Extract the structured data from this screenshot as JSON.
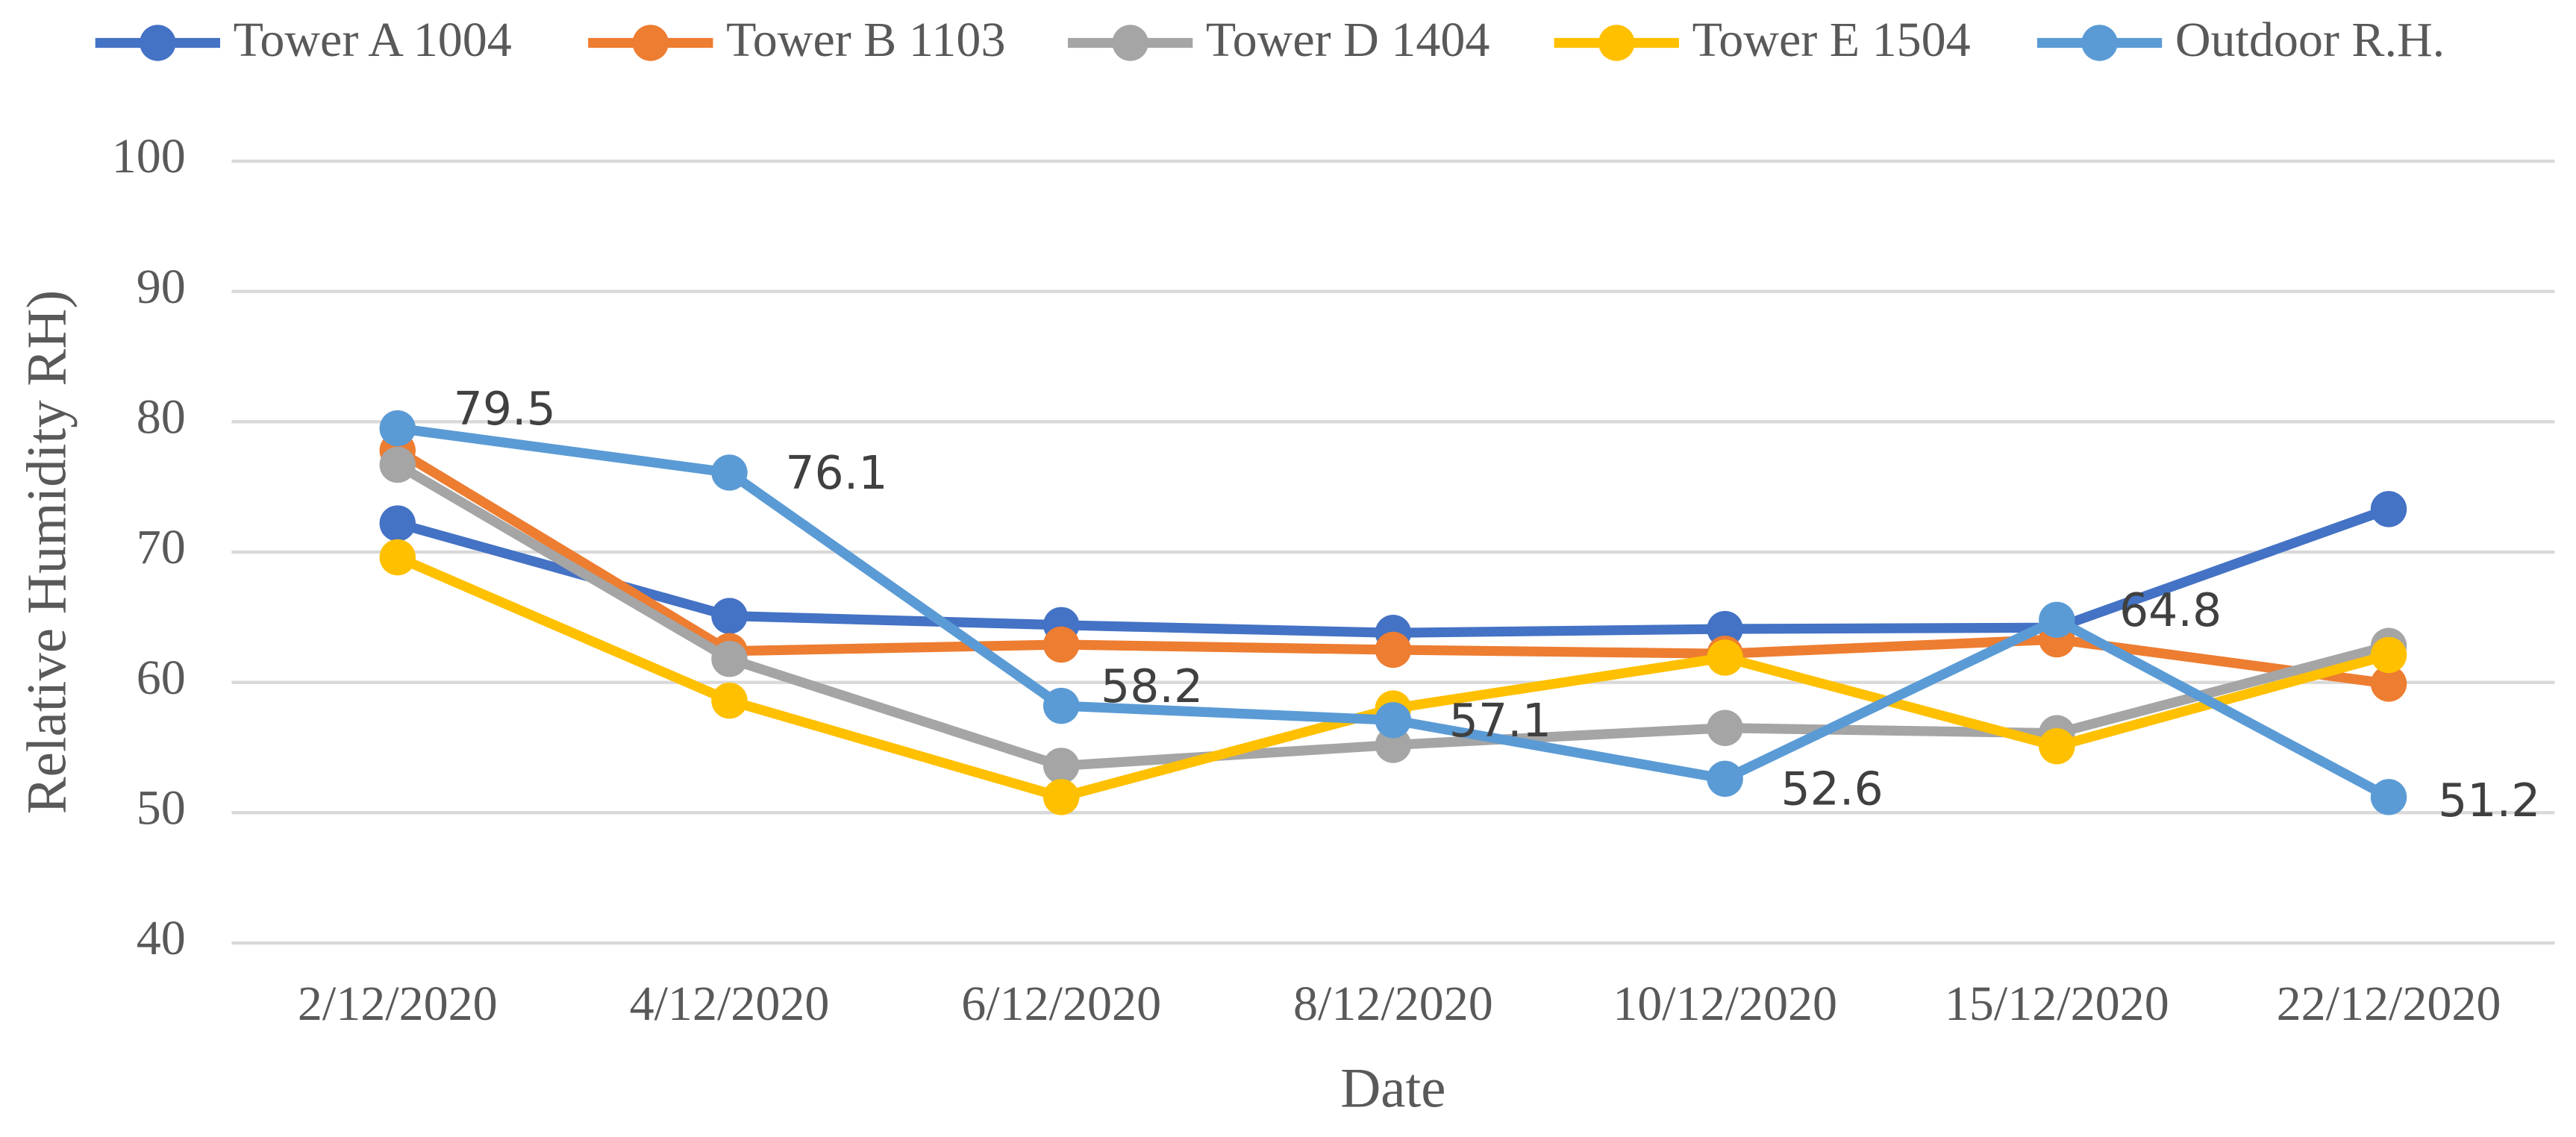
{
  "chart_data": {
    "type": "line",
    "x_label": "Date",
    "y_label": "Relative Humidity RH)",
    "categories": [
      "2/12/2020",
      "4/12/2020",
      "6/12/2020",
      "8/12/2020",
      "10/12/2020",
      "15/12/2020",
      "22/12/2020"
    ],
    "series": [
      {
        "name": "Tower A 1004",
        "color": "#4472c4",
        "values": [
          72.2,
          65.1,
          64.4,
          63.8,
          64.1,
          64.2,
          73.3
        ]
      },
      {
        "name": "Tower B 1103",
        "color": "#ed7d31",
        "values": [
          77.8,
          62.4,
          62.9,
          62.5,
          62.2,
          63.3,
          59.9
        ]
      },
      {
        "name": "Tower D 1404",
        "color": "#a5a5a5",
        "values": [
          76.7,
          61.8,
          53.6,
          55.2,
          56.5,
          56.1,
          62.8
        ]
      },
      {
        "name": "Tower E 1504",
        "color": "#ffc000",
        "values": [
          69.6,
          58.6,
          51.2,
          58.0,
          61.9,
          55.1,
          62.1
        ]
      },
      {
        "name": "Outdoor R.H.",
        "color": "#5b9bd5",
        "values": [
          79.5,
          76.1,
          58.2,
          57.1,
          52.6,
          64.8,
          51.2
        ],
        "data_labels": true
      }
    ],
    "ylim": [
      40,
      100
    ],
    "yticks": [
      40,
      50,
      60,
      70,
      80,
      90,
      100
    ],
    "grid": true,
    "legend": "top"
  }
}
